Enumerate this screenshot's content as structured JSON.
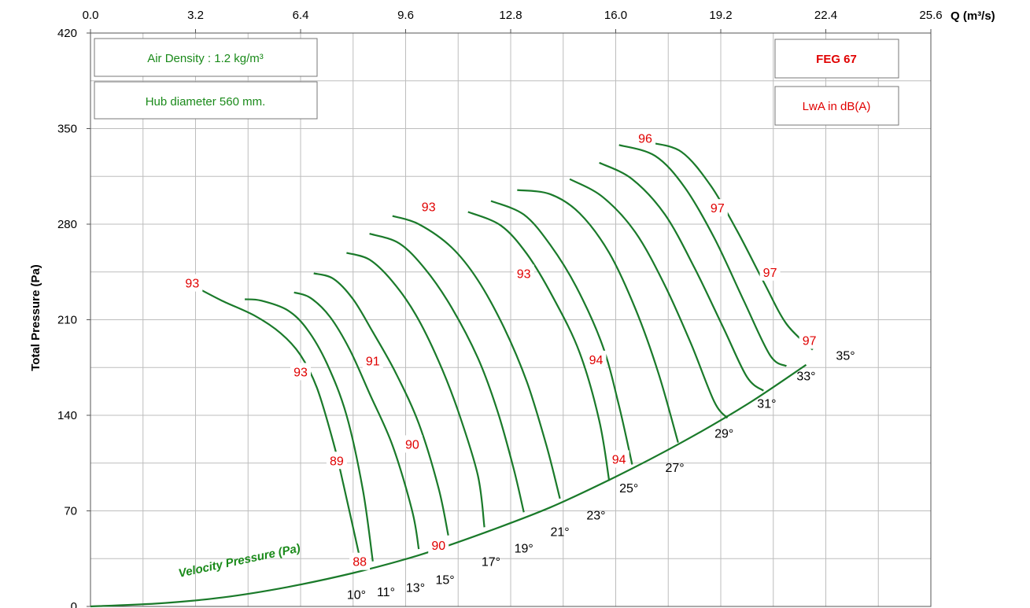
{
  "chart_data": {
    "type": "line",
    "title": "",
    "xlabel": "Q (m³/s)",
    "ylabel": "Total Pressure (Pa)",
    "xlim": [
      0,
      25.6
    ],
    "ylim": [
      0,
      420
    ],
    "x_ticks": [
      "0.0",
      "3.2",
      "6.4",
      "9.6",
      "12.8",
      "16.0",
      "19.2",
      "22.4",
      "25.6"
    ],
    "y_ticks": [
      "0",
      "70",
      "140",
      "210",
      "280",
      "350",
      "420"
    ],
    "grid": true,
    "info_boxes": {
      "air_density": "Air Density : 1.2 kg/m³",
      "hub_diameter": "Hub diameter 560 mm.",
      "model": "FEG 67",
      "noise_unit": "LwA in dB(A)"
    },
    "velocity_pressure": {
      "name": "Velocity Pressure (Pa)",
      "x": [
        0,
        2.0,
        4.0,
        6.0,
        8.0,
        10.0,
        12.0,
        14.0,
        16.0,
        18.0,
        20.0,
        21.8
      ],
      "y": [
        0,
        2.1,
        6.5,
        14.2,
        24.5,
        37.5,
        54.0,
        72.5,
        95.0,
        120.0,
        148.0,
        177.0
      ]
    },
    "blade_angle_curves": [
      {
        "angle": "10°",
        "x": [
          3.2,
          4.0,
          5.0,
          5.8,
          6.4,
          6.9,
          7.4,
          7.7,
          8.2
        ],
        "y": [
          234,
          224,
          213,
          200,
          184,
          160,
          120,
          90,
          36
        ]
      },
      {
        "angle": "11°",
        "x": [
          4.7,
          5.2,
          6.0,
          6.6,
          7.2,
          7.8,
          8.3,
          8.6
        ],
        "y": [
          225,
          224,
          217,
          203,
          178,
          140,
          85,
          33
        ]
      },
      {
        "angle": "13°",
        "x": [
          6.2,
          6.7,
          7.3,
          7.9,
          8.5,
          9.2,
          9.8,
          10.0
        ],
        "y": [
          230,
          226,
          212,
          188,
          156,
          118,
          70,
          42
        ]
      },
      {
        "angle": "15°",
        "x": [
          6.8,
          7.4,
          8.0,
          8.6,
          9.3,
          10.0,
          10.6,
          10.9
        ],
        "y": [
          244,
          240,
          225,
          201,
          171,
          134,
          87,
          52
        ]
      },
      {
        "angle": "17°",
        "x": [
          7.8,
          8.5,
          9.2,
          9.9,
          10.6,
          11.2,
          11.8,
          12.0
        ],
        "y": [
          259,
          254,
          238,
          214,
          180,
          143,
          96,
          58
        ]
      },
      {
        "angle": "19°",
        "x": [
          8.5,
          9.4,
          10.2,
          11.0,
          11.8,
          12.4,
          12.9,
          13.2
        ],
        "y": [
          273,
          266,
          247,
          219,
          182,
          143,
          100,
          69
        ]
      },
      {
        "angle": "21°",
        "x": [
          9.2,
          10.0,
          11.0,
          11.8,
          12.6,
          13.3,
          13.9,
          14.3
        ],
        "y": [
          286,
          280,
          263,
          239,
          204,
          164,
          117,
          79
        ]
      },
      {
        "angle": "23°",
        "x": [
          11.5,
          12.5,
          13.3,
          14.1,
          14.9,
          15.5,
          15.8
        ],
        "y": [
          289,
          279,
          258,
          226,
          186,
          136,
          92
        ]
      },
      {
        "angle": "25°",
        "x": [
          12.2,
          13.2,
          14.0,
          14.8,
          15.6,
          16.1,
          16.5
        ],
        "y": [
          297,
          287,
          265,
          234,
          191,
          147,
          104
        ]
      },
      {
        "angle": "27°",
        "x": [
          13.0,
          14.0,
          14.9,
          15.8,
          16.6,
          17.3,
          17.9
        ],
        "y": [
          305,
          302,
          288,
          259,
          218,
          171,
          120
        ]
      },
      {
        "angle": "29°",
        "x": [
          14.6,
          15.6,
          16.6,
          17.5,
          18.3,
          19.0,
          19.4
        ],
        "y": [
          313,
          300,
          274,
          235,
          192,
          150,
          138
        ]
      },
      {
        "angle": "31°",
        "x": [
          15.5,
          16.5,
          17.5,
          18.4,
          19.3,
          20.0,
          20.5
        ],
        "y": [
          325,
          313,
          287,
          248,
          203,
          168,
          158
        ]
      },
      {
        "angle": "33°",
        "x": [
          16.1,
          17.2,
          18.1,
          19.0,
          19.9,
          20.7,
          21.2
        ],
        "y": [
          338,
          330,
          307,
          270,
          224,
          184,
          176
        ]
      },
      {
        "angle": "35°",
        "x": [
          17.0,
          18.0,
          18.9,
          19.7,
          20.5,
          21.2,
          22.0
        ],
        "y": [
          340,
          333,
          308,
          275,
          238,
          207,
          188
        ]
      }
    ],
    "angle_labels": [
      {
        "text": "10°",
        "x": 8.1,
        "y": 9
      },
      {
        "text": "11°",
        "x": 9.0,
        "y": 11
      },
      {
        "text": "13°",
        "x": 9.9,
        "y": 14
      },
      {
        "text": "15°",
        "x": 10.8,
        "y": 20
      },
      {
        "text": "17°",
        "x": 12.2,
        "y": 33
      },
      {
        "text": "19°",
        "x": 13.2,
        "y": 43
      },
      {
        "text": "21°",
        "x": 14.3,
        "y": 55
      },
      {
        "text": "23°",
        "x": 15.4,
        "y": 67
      },
      {
        "text": "25°",
        "x": 16.4,
        "y": 87
      },
      {
        "text": "27°",
        "x": 17.8,
        "y": 102
      },
      {
        "text": "29°",
        "x": 19.3,
        "y": 127
      },
      {
        "text": "31°",
        "x": 20.6,
        "y": 149
      },
      {
        "text": "33°",
        "x": 21.8,
        "y": 169
      },
      {
        "text": "35°",
        "x": 23.0,
        "y": 184
      }
    ],
    "noise_labels": [
      {
        "text": "93",
        "x": 3.1,
        "y": 237
      },
      {
        "text": "93",
        "x": 6.4,
        "y": 172
      },
      {
        "text": "91",
        "x": 8.6,
        "y": 180
      },
      {
        "text": "89",
        "x": 7.5,
        "y": 107
      },
      {
        "text": "90",
        "x": 9.8,
        "y": 119
      },
      {
        "text": "90",
        "x": 10.6,
        "y": 45
      },
      {
        "text": "88",
        "x": 8.2,
        "y": 33
      },
      {
        "text": "93",
        "x": 10.3,
        "y": 293
      },
      {
        "text": "93",
        "x": 13.2,
        "y": 244
      },
      {
        "text": "94",
        "x": 15.4,
        "y": 181
      },
      {
        "text": "94",
        "x": 16.1,
        "y": 108
      },
      {
        "text": "96",
        "x": 16.9,
        "y": 343
      },
      {
        "text": "97",
        "x": 19.1,
        "y": 292
      },
      {
        "text": "97",
        "x": 20.7,
        "y": 245
      },
      {
        "text": "97",
        "x": 21.9,
        "y": 195
      }
    ]
  }
}
